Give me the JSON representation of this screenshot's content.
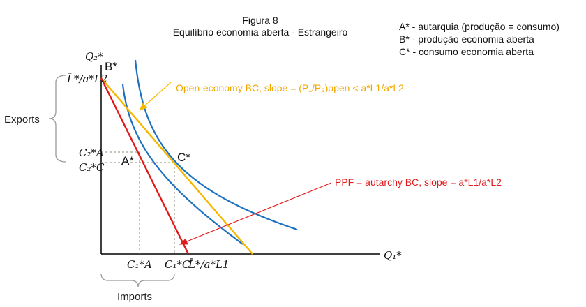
{
  "title": {
    "line1": "Figura 8",
    "line2": "Equilíbrio economia aberta - Estrangeiro"
  },
  "legend": [
    "A* - autarquia (produção = consumo)",
    "B* - produção economia aberta",
    "C* - consumo economia aberta"
  ],
  "axes": {
    "y_label": "Q₂*",
    "x_label": "Q₁*"
  },
  "y_ticks": {
    "top": "L̄*/a*L2",
    "c2a": "C₂*A",
    "c2c": "C₂*C"
  },
  "x_ticks": {
    "c1a": "C₁*A",
    "c1c": "C₁*C",
    "right": "L̄*/a*L1"
  },
  "points": {
    "a": "A*",
    "b": "B*",
    "c": "C*"
  },
  "annotations": {
    "open_bc": "Open-economy BC, slope = (P₁/P₂)open < a*L1/a*L2",
    "ppf": "PPF = autarchy BC, slope = a*L1/a*L2"
  },
  "braces": {
    "exports": "Exports",
    "imports": "Imports"
  },
  "colors": {
    "ppf": "#e0191b",
    "open_bc": "#f5b800",
    "indiff": "#1d72c0",
    "axis": "#000000",
    "guide": "#8a8a70"
  }
}
